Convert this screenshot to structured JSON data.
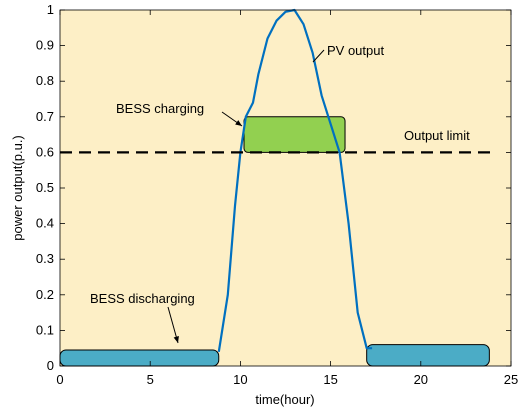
{
  "chart_data": {
    "type": "line",
    "title": "",
    "xlabel": "time(hour)",
    "ylabel": "power output(p.u.)",
    "xlim": [
      0,
      25
    ],
    "ylim": [
      0,
      1
    ],
    "x_ticks": [
      "0",
      "5",
      "10",
      "15",
      "20",
      "25"
    ],
    "y_ticks": [
      "0",
      "0.1",
      "0.2",
      "0.3",
      "0.4",
      "0.5",
      "0.6",
      "0.7",
      "0.8",
      "0.9",
      "1"
    ],
    "grid": false,
    "series": [
      {
        "name": "PV output",
        "x": [
          8.8,
          9.3,
          9.7,
          10.0,
          10.3,
          10.7,
          11.0,
          11.5,
          12.0,
          12.5,
          13.0,
          13.5,
          14.0,
          14.5,
          15.0,
          15.5,
          16.0,
          16.5,
          17.0,
          17.3
        ],
        "y": [
          0.04,
          0.2,
          0.45,
          0.6,
          0.7,
          0.74,
          0.82,
          0.92,
          0.97,
          0.995,
          1.0,
          0.96,
          0.88,
          0.76,
          0.68,
          0.6,
          0.4,
          0.15,
          0.05,
          0.05
        ]
      },
      {
        "name": "Output limit",
        "x": [
          0,
          24
        ],
        "y": [
          0.6,
          0.6
        ]
      }
    ],
    "regions": [
      {
        "name": "BESS charging",
        "x_start": 10.2,
        "x_end": 15.8,
        "y_low": 0.6,
        "y_high": 0.7,
        "color": "#92d050"
      },
      {
        "name": "BESS discharging",
        "segments": [
          {
            "x_start": 0,
            "x_end": 8.8,
            "y_low": 0.0,
            "y_high": 0.045
          },
          {
            "x_start": 17.0,
            "x_end": 23.8,
            "y_low": 0.0,
            "y_high": 0.06
          }
        ],
        "color": "#4bacc6"
      }
    ],
    "annotations": [
      {
        "text": "PV output"
      },
      {
        "text": "BESS charging"
      },
      {
        "text": "Output limit"
      },
      {
        "text": "BESS discharging"
      }
    ],
    "colors": {
      "background": "#fdefc6",
      "pv_line": "#0070c0",
      "charging": "#92d050",
      "discharging": "#4bacc6"
    }
  }
}
